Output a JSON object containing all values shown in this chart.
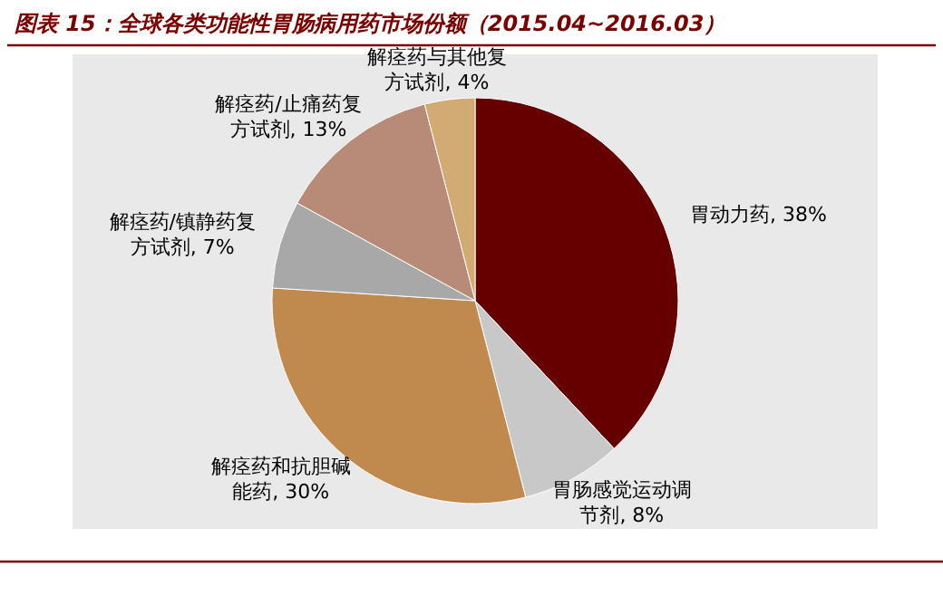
{
  "chart_data": {
    "type": "pie",
    "title": "图表 15：全球各类功能性胃肠病用药市场份额（2015.04~2016.03）",
    "categories": [
      "胃动力药",
      "胃肠感觉运动调节剂",
      "解痉药和抗胆碱能药",
      "解痉药/镇静药复方试剂",
      "解痉药/止痛药复方试剂",
      "解痉药与其他复方试剂"
    ],
    "values": [
      38,
      8,
      30,
      7,
      13,
      4
    ],
    "colors": [
      "#660000",
      "#c8c8c8",
      "#c08a4e",
      "#a8a8a8",
      "#b88a78",
      "#d2aa74"
    ],
    "value_labels": [
      "38%",
      "8%",
      "30%",
      "7%",
      "13%",
      "4%"
    ]
  }
}
